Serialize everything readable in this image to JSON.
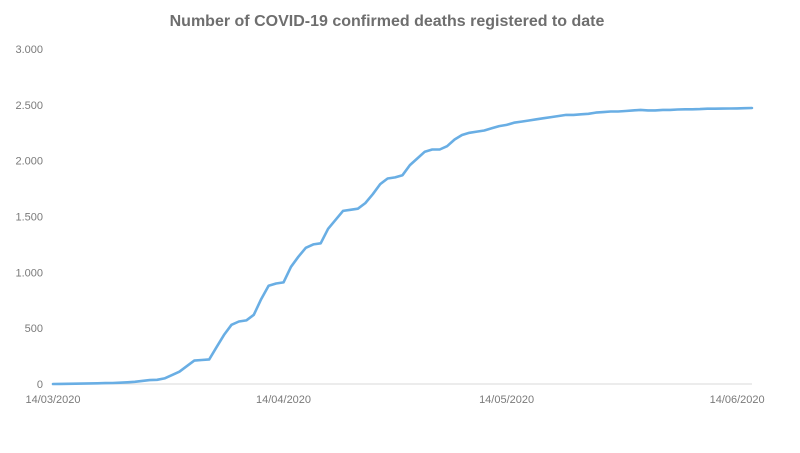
{
  "chart_data": {
    "type": "line",
    "title": "Number of COVID-19 confirmed deaths registered to date",
    "xlabel": "",
    "ylabel": "",
    "ylim": [
      0,
      3000
    ],
    "yticks": [
      0,
      500,
      1000,
      1500,
      2000,
      2500,
      3000
    ],
    "ytick_labels": [
      "0",
      "500",
      "1.000",
      "1.500",
      "2.000",
      "2.500",
      "3.000"
    ],
    "xlim": [
      "2020-03-14",
      "2020-06-16"
    ],
    "xticks": [
      "2020-03-14",
      "2020-04-14",
      "2020-05-14",
      "2020-06-14"
    ],
    "xtick_labels": [
      "14/03/2020",
      "14/04/2020",
      "14/05/2020",
      "14/06/2020"
    ],
    "grid": false,
    "legend": "none",
    "colors": {
      "line": "#69aee4",
      "axis": "#d9d9d9",
      "title": "#6e6e6e",
      "tick": "#7a7a7a"
    },
    "series": [
      {
        "x": [
          "2020-03-14",
          "2020-03-15",
          "2020-03-16",
          "2020-03-17",
          "2020-03-18",
          "2020-03-19",
          "2020-03-20",
          "2020-03-21",
          "2020-03-22",
          "2020-03-23",
          "2020-03-24",
          "2020-03-25",
          "2020-03-26",
          "2020-03-27",
          "2020-03-28",
          "2020-03-29",
          "2020-03-30",
          "2020-03-31",
          "2020-04-01",
          "2020-04-02",
          "2020-04-03",
          "2020-04-04",
          "2020-04-05",
          "2020-04-06",
          "2020-04-07",
          "2020-04-08",
          "2020-04-09",
          "2020-04-10",
          "2020-04-11",
          "2020-04-12",
          "2020-04-13",
          "2020-04-14",
          "2020-04-15",
          "2020-04-16",
          "2020-04-17",
          "2020-04-18",
          "2020-04-19",
          "2020-04-20",
          "2020-04-21",
          "2020-04-22",
          "2020-04-23",
          "2020-04-24",
          "2020-04-25",
          "2020-04-26",
          "2020-04-27",
          "2020-04-28",
          "2020-04-29",
          "2020-04-30",
          "2020-05-01",
          "2020-05-02",
          "2020-05-03",
          "2020-05-04",
          "2020-05-05",
          "2020-05-06",
          "2020-05-07",
          "2020-05-08",
          "2020-05-09",
          "2020-05-10",
          "2020-05-11",
          "2020-05-12",
          "2020-05-13",
          "2020-05-14",
          "2020-05-15",
          "2020-05-16",
          "2020-05-17",
          "2020-05-18",
          "2020-05-19",
          "2020-05-20",
          "2020-05-21",
          "2020-05-22",
          "2020-05-23",
          "2020-05-24",
          "2020-05-25",
          "2020-05-26",
          "2020-05-27",
          "2020-05-28",
          "2020-05-29",
          "2020-05-30",
          "2020-05-31",
          "2020-06-01",
          "2020-06-02",
          "2020-06-03",
          "2020-06-04",
          "2020-06-05",
          "2020-06-06",
          "2020-06-07",
          "2020-06-08",
          "2020-06-09",
          "2020-06-10",
          "2020-06-11",
          "2020-06-12",
          "2020-06-13",
          "2020-06-14",
          "2020-06-15",
          "2020-06-16"
        ],
        "values": [
          0,
          1,
          2,
          3,
          4,
          5,
          6,
          8,
          9,
          12,
          15,
          20,
          28,
          35,
          38,
          50,
          80,
          110,
          160,
          210,
          215,
          220,
          330,
          440,
          530,
          560,
          570,
          620,
          760,
          880,
          900,
          910,
          1050,
          1140,
          1220,
          1250,
          1260,
          1390,
          1470,
          1550,
          1560,
          1570,
          1620,
          1700,
          1790,
          1840,
          1850,
          1870,
          1960,
          2020,
          2080,
          2100,
          2100,
          2130,
          2190,
          2230,
          2250,
          2260,
          2270,
          2290,
          2310,
          2320,
          2340,
          2350,
          2360,
          2370,
          2380,
          2390,
          2400,
          2410,
          2410,
          2415,
          2420,
          2430,
          2435,
          2440,
          2440,
          2445,
          2450,
          2455,
          2450,
          2450,
          2455,
          2455,
          2458,
          2460,
          2460,
          2462,
          2465,
          2465,
          2466,
          2467,
          2468,
          2470,
          2472
        ]
      }
    ]
  }
}
